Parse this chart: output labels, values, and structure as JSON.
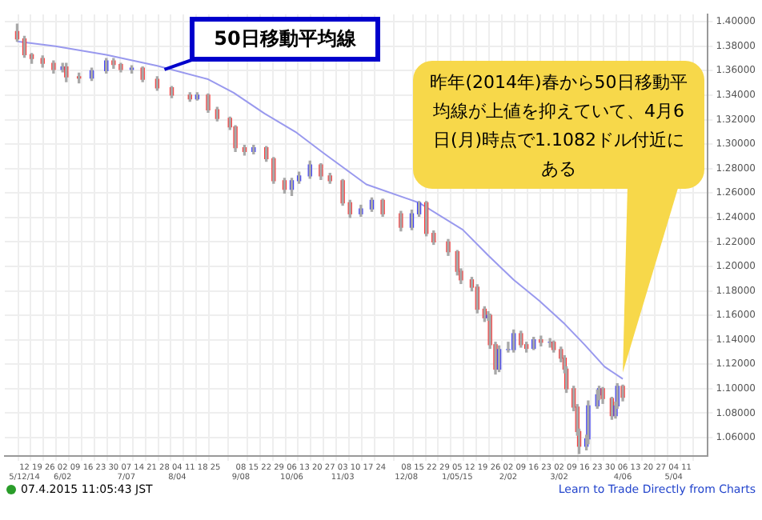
{
  "chart_data": {
    "type": "candlestick",
    "x": [
      "2014-05-08",
      "2014-05-12",
      "2014-05-16",
      "2014-05-22",
      "2014-05-28",
      "2014-06-02",
      "2014-06-04",
      "2014-06-11",
      "2014-06-18",
      "2014-06-26",
      "2014-06-30",
      "2014-07-04",
      "2014-07-10",
      "2014-07-16",
      "2014-07-24",
      "2014-08-01",
      "2014-08-11",
      "2014-08-15",
      "2014-08-21",
      "2014-08-26",
      "2014-09-02",
      "2014-09-05",
      "2014-09-10",
      "2014-09-15",
      "2014-09-22",
      "2014-09-26",
      "2014-10-02",
      "2014-10-06",
      "2014-10-10",
      "2014-10-16",
      "2014-10-22",
      "2014-10-27",
      "2014-11-03",
      "2014-11-07",
      "2014-11-13",
      "2014-11-19",
      "2014-11-25",
      "2014-12-05",
      "2014-12-11",
      "2014-12-15",
      "2014-12-19",
      "2014-12-23",
      "2014-12-31",
      "2015-01-05",
      "2015-01-07",
      "2015-01-13",
      "2015-01-16",
      "2015-01-20",
      "2015-01-22",
      "2015-01-23",
      "2015-01-26",
      "2015-01-28",
      "2015-02-02",
      "2015-02-05",
      "2015-02-09",
      "2015-02-12",
      "2015-02-16",
      "2015-02-20",
      "2015-02-25",
      "2015-02-27",
      "2015-03-03",
      "2015-03-05",
      "2015-03-06",
      "2015-03-10",
      "2015-03-12",
      "2015-03-13",
      "2015-03-17",
      "2015-03-18",
      "2015-03-23",
      "2015-03-24",
      "2015-03-26",
      "2015-03-31",
      "2015-04-02",
      "2015-04-03",
      "2015-04-06"
    ],
    "ohlc": [
      [
        1.392,
        1.398,
        1.384,
        1.386
      ],
      [
        1.386,
        1.388,
        1.371,
        1.373
      ],
      [
        1.373,
        1.374,
        1.366,
        1.37
      ],
      [
        1.37,
        1.372,
        1.363,
        1.366
      ],
      [
        1.366,
        1.368,
        1.358,
        1.361
      ],
      [
        1.361,
        1.366,
        1.359,
        1.363
      ],
      [
        1.363,
        1.366,
        1.351,
        1.355
      ],
      [
        1.355,
        1.358,
        1.35,
        1.354
      ],
      [
        1.354,
        1.362,
        1.352,
        1.36
      ],
      [
        1.36,
        1.37,
        1.358,
        1.368
      ],
      [
        1.368,
        1.37,
        1.362,
        1.365
      ],
      [
        1.365,
        1.366,
        1.359,
        1.361
      ],
      [
        1.361,
        1.364,
        1.358,
        1.362
      ],
      [
        1.362,
        1.363,
        1.351,
        1.353
      ],
      [
        1.353,
        1.355,
        1.344,
        1.346
      ],
      [
        1.346,
        1.347,
        1.338,
        1.34
      ],
      [
        1.34,
        1.342,
        1.335,
        1.337
      ],
      [
        1.337,
        1.342,
        1.336,
        1.34
      ],
      [
        1.34,
        1.341,
        1.326,
        1.328
      ],
      [
        1.328,
        1.33,
        1.319,
        1.321
      ],
      [
        1.321,
        1.322,
        1.312,
        1.314
      ],
      [
        1.314,
        1.315,
        1.294,
        1.297
      ],
      [
        1.297,
        1.299,
        1.291,
        1.294
      ],
      [
        1.294,
        1.299,
        1.292,
        1.297
      ],
      [
        1.297,
        1.298,
        1.286,
        1.288
      ],
      [
        1.288,
        1.289,
        1.268,
        1.27
      ],
      [
        1.27,
        1.272,
        1.26,
        1.263
      ],
      [
        1.263,
        1.272,
        1.258,
        1.27
      ],
      [
        1.27,
        1.277,
        1.268,
        1.274
      ],
      [
        1.274,
        1.286,
        1.272,
        1.283
      ],
      [
        1.283,
        1.284,
        1.271,
        1.274
      ],
      [
        1.274,
        1.276,
        1.268,
        1.27
      ],
      [
        1.27,
        1.271,
        1.25,
        1.252
      ],
      [
        1.252,
        1.254,
        1.24,
        1.243
      ],
      [
        1.243,
        1.25,
        1.241,
        1.247
      ],
      [
        1.247,
        1.256,
        1.245,
        1.254
      ],
      [
        1.254,
        1.255,
        1.241,
        1.243
      ],
      [
        1.243,
        1.245,
        1.229,
        1.232
      ],
      [
        1.232,
        1.246,
        1.23,
        1.243
      ],
      [
        1.243,
        1.253,
        1.241,
        1.252
      ],
      [
        1.252,
        1.253,
        1.225,
        1.227
      ],
      [
        1.227,
        1.229,
        1.218,
        1.22
      ],
      [
        1.22,
        1.222,
        1.209,
        1.212
      ],
      [
        1.212,
        1.213,
        1.193,
        1.196
      ],
      [
        1.196,
        1.198,
        1.186,
        1.189
      ],
      [
        1.189,
        1.191,
        1.18,
        1.183
      ],
      [
        1.183,
        1.185,
        1.162,
        1.165
      ],
      [
        1.165,
        1.167,
        1.155,
        1.158
      ],
      [
        1.158,
        1.163,
        1.156,
        1.16
      ],
      [
        1.16,
        1.161,
        1.133,
        1.136
      ],
      [
        1.136,
        1.138,
        1.112,
        1.116
      ],
      [
        1.116,
        1.135,
        1.114,
        1.132
      ],
      [
        1.132,
        1.138,
        1.13,
        1.132
      ],
      [
        1.132,
        1.148,
        1.13,
        1.145
      ],
      [
        1.145,
        1.147,
        1.134,
        1.136
      ],
      [
        1.136,
        1.138,
        1.13,
        1.133
      ],
      [
        1.133,
        1.142,
        1.132,
        1.14
      ],
      [
        1.14,
        1.143,
        1.135,
        1.138
      ],
      [
        1.138,
        1.141,
        1.134,
        1.138
      ],
      [
        1.138,
        1.139,
        1.13,
        1.132
      ],
      [
        1.132,
        1.134,
        1.122,
        1.125
      ],
      [
        1.125,
        1.127,
        1.113,
        1.116
      ],
      [
        1.116,
        1.118,
        1.097,
        1.1
      ],
      [
        1.1,
        1.102,
        1.082,
        1.085
      ],
      [
        1.085,
        1.087,
        1.062,
        1.065
      ],
      [
        1.065,
        1.067,
        1.047,
        1.053
      ],
      [
        1.053,
        1.062,
        1.05,
        1.059
      ],
      [
        1.059,
        1.09,
        1.055,
        1.086
      ],
      [
        1.086,
        1.099,
        1.084,
        1.095
      ],
      [
        1.095,
        1.102,
        1.091,
        1.1
      ],
      [
        1.1,
        1.101,
        1.088,
        1.092
      ],
      [
        1.092,
        1.093,
        1.075,
        1.078
      ],
      [
        1.078,
        1.089,
        1.076,
        1.086
      ],
      [
        1.086,
        1.104,
        1.084,
        1.102
      ],
      [
        1.102,
        1.103,
        1.09,
        1.093
      ]
    ],
    "colors": [
      "#ff3333",
      "#ff3333",
      "#ff3333",
      "#ff3333",
      "#ff3333",
      "#3333ff",
      "#ff3333",
      "#ff3333",
      "#3333ff",
      "#3333ff",
      "#ff3333",
      "#ff3333",
      "#3333ff",
      "#ff3333",
      "#ff3333",
      "#ff3333",
      "#ff3333",
      "#3333ff",
      "#ff3333",
      "#ff3333",
      "#ff3333",
      "#ff3333",
      "#ff3333",
      "#3333ff",
      "#ff3333",
      "#ff3333",
      "#ff3333",
      "#3333ff",
      "#3333ff",
      "#3333ff",
      "#ff3333",
      "#ff3333",
      "#ff3333",
      "#ff3333",
      "#3333ff",
      "#3333ff",
      "#ff3333",
      "#ff3333",
      "#3333ff",
      "#3333ff",
      "#ff3333",
      "#ff3333",
      "#ff3333",
      "#ff3333",
      "#ff3333",
      "#ff3333",
      "#ff3333",
      "#ff3333",
      "#3333ff",
      "#ff3333",
      "#ff3333",
      "#3333ff",
      "#3333ff",
      "#3333ff",
      "#ff3333",
      "#ff3333",
      "#3333ff",
      "#ff3333",
      "#3333ff",
      "#ff3333",
      "#ff3333",
      "#ff3333",
      "#ff3333",
      "#ff3333",
      "#ff3333",
      "#ff3333",
      "#3333ff",
      "#3333ff",
      "#3333ff",
      "#3333ff",
      "#ff3333",
      "#ff3333",
      "#3333ff",
      "#3333ff",
      "#ff3333"
    ],
    "series": [
      {
        "type": "line",
        "color": "#9999ee",
        "x": [
          "2014-05-08",
          "2014-05-29",
          "2014-06-26",
          "2014-07-24",
          "2014-08-21",
          "2014-09-04",
          "2014-09-21",
          "2014-10-08",
          "2014-10-24",
          "2014-11-16",
          "2014-12-15",
          "2015-01-08",
          "2015-01-22",
          "2015-02-05",
          "2015-02-19",
          "2015-03-05",
          "2015-03-16",
          "2015-03-27",
          "2015-04-06"
        ],
        "values": [
          1.384,
          1.38,
          1.373,
          1.364,
          1.353,
          1.342,
          1.325,
          1.31,
          1.292,
          1.267,
          1.252,
          1.23,
          1.209,
          1.189,
          1.172,
          1.153,
          1.136,
          1.118,
          1.108
        ]
      }
    ],
    "xlim": [
      "2014-05-05",
      "2015-05-19"
    ],
    "xticks": [
      {
        "value": "2014-05-12",
        "label": "12\n5/12/14"
      },
      {
        "value": "2014-05-19",
        "label": "19"
      },
      {
        "value": "2014-05-26",
        "label": "26"
      },
      {
        "value": "2014-06-02",
        "label": "02\n6/02"
      },
      {
        "value": "2014-06-09",
        "label": "09"
      },
      {
        "value": "2014-06-16",
        "label": "16"
      },
      {
        "value": "2014-06-23",
        "label": "23"
      },
      {
        "value": "2014-06-30",
        "label": "30"
      },
      {
        "value": "2014-07-07",
        "label": "07\n7/07"
      },
      {
        "value": "2014-07-14",
        "label": "14"
      },
      {
        "value": "2014-07-21",
        "label": "21"
      },
      {
        "value": "2014-07-28",
        "label": "28"
      },
      {
        "value": "2014-08-04",
        "label": "04\n8/04"
      },
      {
        "value": "2014-08-11",
        "label": "11"
      },
      {
        "value": "2014-08-18",
        "label": "18"
      },
      {
        "value": "2014-08-25",
        "label": "25"
      },
      {
        "value": "2014-09-08",
        "label": "08\n9/08"
      },
      {
        "value": "2014-09-15",
        "label": "15"
      },
      {
        "value": "2014-09-22",
        "label": "22"
      },
      {
        "value": "2014-09-29",
        "label": "29"
      },
      {
        "value": "2014-10-06",
        "label": "06\n10/06"
      },
      {
        "value": "2014-10-13",
        "label": "13"
      },
      {
        "value": "2014-10-20",
        "label": "20"
      },
      {
        "value": "2014-10-27",
        "label": "27"
      },
      {
        "value": "2014-11-03",
        "label": "03\n11/03"
      },
      {
        "value": "2014-11-10",
        "label": "10"
      },
      {
        "value": "2014-11-17",
        "label": "17"
      },
      {
        "value": "2014-11-24",
        "label": "24"
      },
      {
        "value": "2014-12-08",
        "label": "08\n12/08"
      },
      {
        "value": "2014-12-15",
        "label": "15"
      },
      {
        "value": "2014-12-22",
        "label": "22"
      },
      {
        "value": "2014-12-29",
        "label": "29"
      },
      {
        "value": "2015-01-05",
        "label": "05\n1/05/15"
      },
      {
        "value": "2015-01-12",
        "label": "12"
      },
      {
        "value": "2015-01-19",
        "label": "19"
      },
      {
        "value": "2015-01-26",
        "label": "26"
      },
      {
        "value": "2015-02-02",
        "label": "02\n2/02"
      },
      {
        "value": "2015-02-09",
        "label": "09"
      },
      {
        "value": "2015-02-16",
        "label": "16"
      },
      {
        "value": "2015-02-23",
        "label": "23"
      },
      {
        "value": "2015-03-02",
        "label": "02\n3/02"
      },
      {
        "value": "2015-03-09",
        "label": "09"
      },
      {
        "value": "2015-03-16",
        "label": "16"
      },
      {
        "value": "2015-03-23",
        "label": "23"
      },
      {
        "value": "2015-03-30",
        "label": "30"
      },
      {
        "value": "2015-04-06",
        "label": "06\n4/06"
      },
      {
        "value": "2015-04-13",
        "label": "13"
      },
      {
        "value": "2015-04-20",
        "label": "20"
      },
      {
        "value": "2015-04-27",
        "label": "27"
      },
      {
        "value": "2015-05-04",
        "label": "04\n5/04"
      },
      {
        "value": "2015-05-11",
        "label": "11"
      }
    ],
    "ylim": [
      1.045,
      1.406
    ],
    "yticks": [
      {
        "value": 1.06,
        "label": "1.06000"
      },
      {
        "value": 1.08,
        "label": "1.08000"
      },
      {
        "value": 1.1,
        "label": "1.10000"
      },
      {
        "value": 1.12,
        "label": "1.12000"
      },
      {
        "value": 1.14,
        "label": "1.14000"
      },
      {
        "value": 1.16,
        "label": "1.16000"
      },
      {
        "value": 1.18,
        "label": "1.18000"
      },
      {
        "value": 1.2,
        "label": "1.20000"
      },
      {
        "value": 1.22,
        "label": "1.22000"
      },
      {
        "value": 1.24,
        "label": "1.24000"
      },
      {
        "value": 1.26,
        "label": "1.26000"
      },
      {
        "value": 1.28,
        "label": "1.28000"
      },
      {
        "value": 1.3,
        "label": "1.30000"
      },
      {
        "value": 1.32,
        "label": "1.32000"
      },
      {
        "value": 1.34,
        "label": "1.34000"
      },
      {
        "value": 1.36,
        "label": "1.36000"
      },
      {
        "value": 1.38,
        "label": "1.38000"
      },
      {
        "value": 1.4,
        "label": "1.40000"
      }
    ],
    "grid": true,
    "annotations": [
      {
        "text": "50日移動平均線",
        "x": "2014-07-28",
        "y": 1.361
      },
      {
        "text": "昨年(2014年)春から50日移動平均線が上値を抑えていて、4月6日(月)時点で1.1082ドル付近にある",
        "x": "2015-04-06",
        "y": 1.108
      },
      "07.4.2015 11:05:43 JST",
      "Learn to Trade Directly from Charts"
    ]
  }
}
